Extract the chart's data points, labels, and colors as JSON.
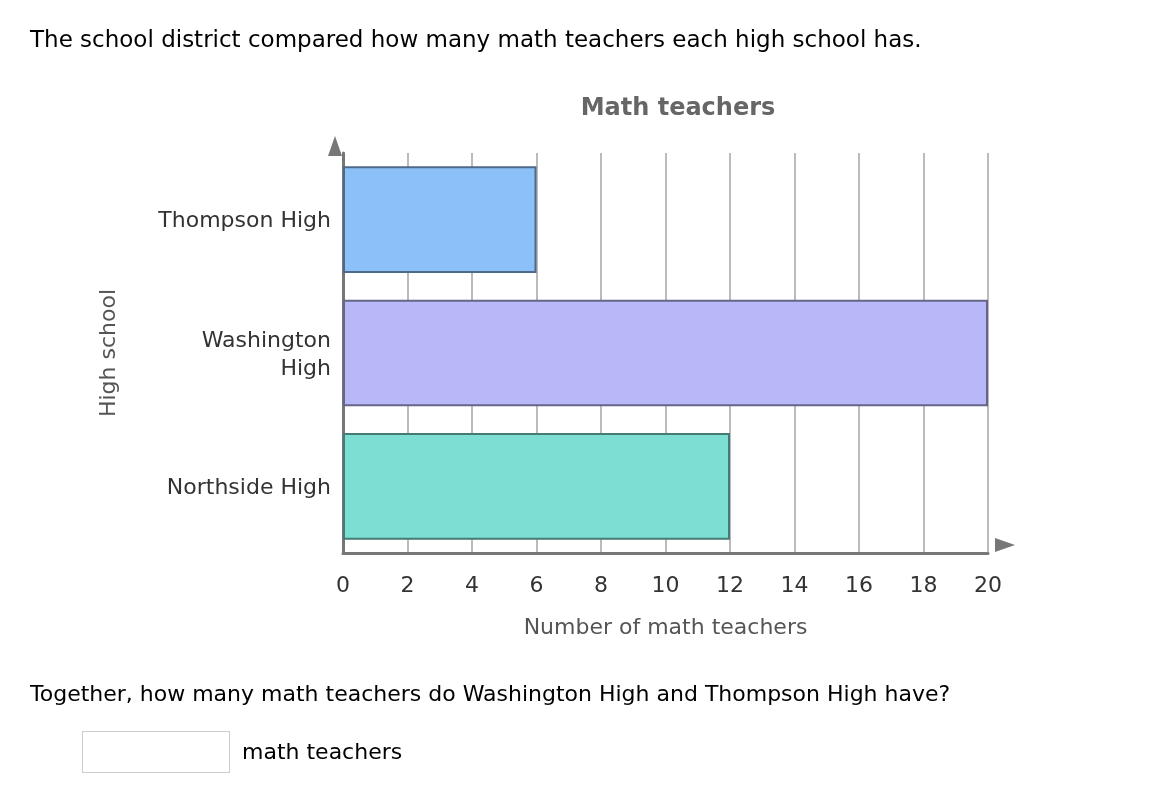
{
  "chart_data": {
    "type": "bar",
    "orientation": "horizontal",
    "title": "Math teachers",
    "xlabel": "Number of math teachers",
    "ylabel": "High school",
    "categories": [
      "Thompson High",
      "Washington High",
      "Northside High"
    ],
    "values": [
      6,
      20,
      12
    ],
    "colors": [
      "#8cc0f9",
      "#b8b8f8",
      "#7ddfd3"
    ],
    "xlim": [
      0,
      20
    ],
    "xticks": [
      0,
      2,
      4,
      6,
      8,
      10,
      12,
      14,
      16,
      18,
      20
    ],
    "grid": "x",
    "annotations": [
      "The school district compared how many math teachers each high school has.",
      "Together, how many math teachers do Washington High and Thompson High have?",
      "math teachers"
    ]
  }
}
